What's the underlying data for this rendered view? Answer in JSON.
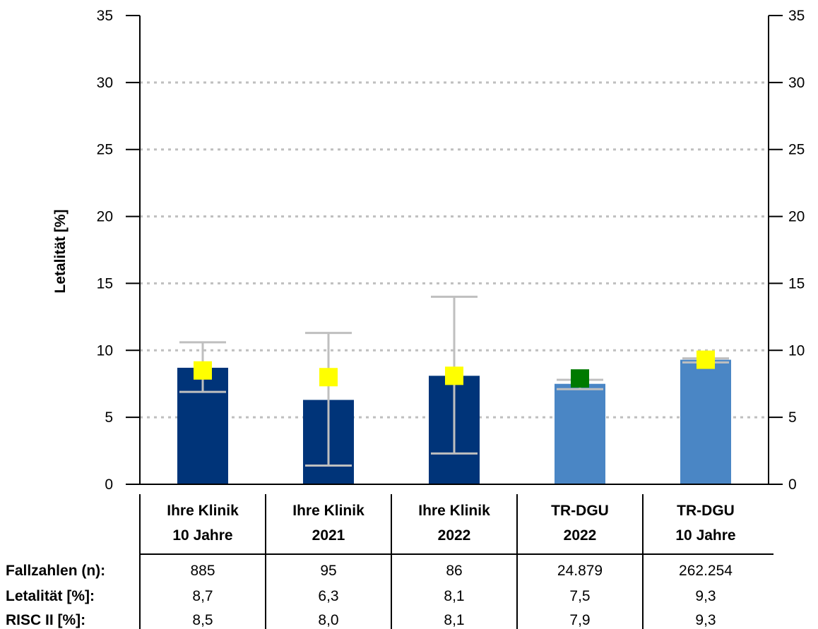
{
  "chart_data": {
    "type": "bar",
    "ylabel": "Letalität [%]",
    "ylim": [
      0,
      35
    ],
    "yticks": [
      "0",
      "5",
      "10",
      "15",
      "20",
      "25",
      "30",
      "35"
    ],
    "grid": "horizontal dotted",
    "categories": [
      [
        "Ihre Klinik",
        "10 Jahre"
      ],
      [
        "Ihre Klinik",
        "2021"
      ],
      [
        "Ihre Klinik",
        "2022"
      ],
      [
        "TR-DGU",
        "2022"
      ],
      [
        "TR-DGU",
        "10 Jahre"
      ]
    ],
    "letalitaet": [
      8.7,
      6.3,
      8.1,
      7.5,
      9.3
    ],
    "risc": [
      8.5,
      8.0,
      8.1,
      7.9,
      9.3
    ],
    "ci": [
      [
        6.9,
        10.6
      ],
      [
        1.4,
        11.3
      ],
      [
        2.3,
        14.0
      ],
      [
        7.1,
        7.8
      ],
      [
        9.1,
        9.4
      ]
    ],
    "bar_colors": [
      "#003479",
      "#003479",
      "#003479",
      "#4A86C5",
      "#4A86C5"
    ],
    "marker_colors": [
      "#FFFF00",
      "#FFFF00",
      "#FFFF00",
      "#007A00",
      "#FFFF00"
    ],
    "errorbar_color": "#BFBFBF",
    "table": {
      "rows": [
        {
          "label": "Fallzahlen (n):",
          "values": [
            "885",
            "95",
            "86",
            "24.879",
            "262.254"
          ]
        },
        {
          "label": "Letalität [%]:",
          "values": [
            "8,7",
            "6,3",
            "8,1",
            "7,5",
            "9,3"
          ]
        },
        {
          "label": "RISC II [%]:",
          "values": [
            "8,5",
            "8,0",
            "8,1",
            "7,9",
            "9,3"
          ]
        }
      ]
    }
  }
}
